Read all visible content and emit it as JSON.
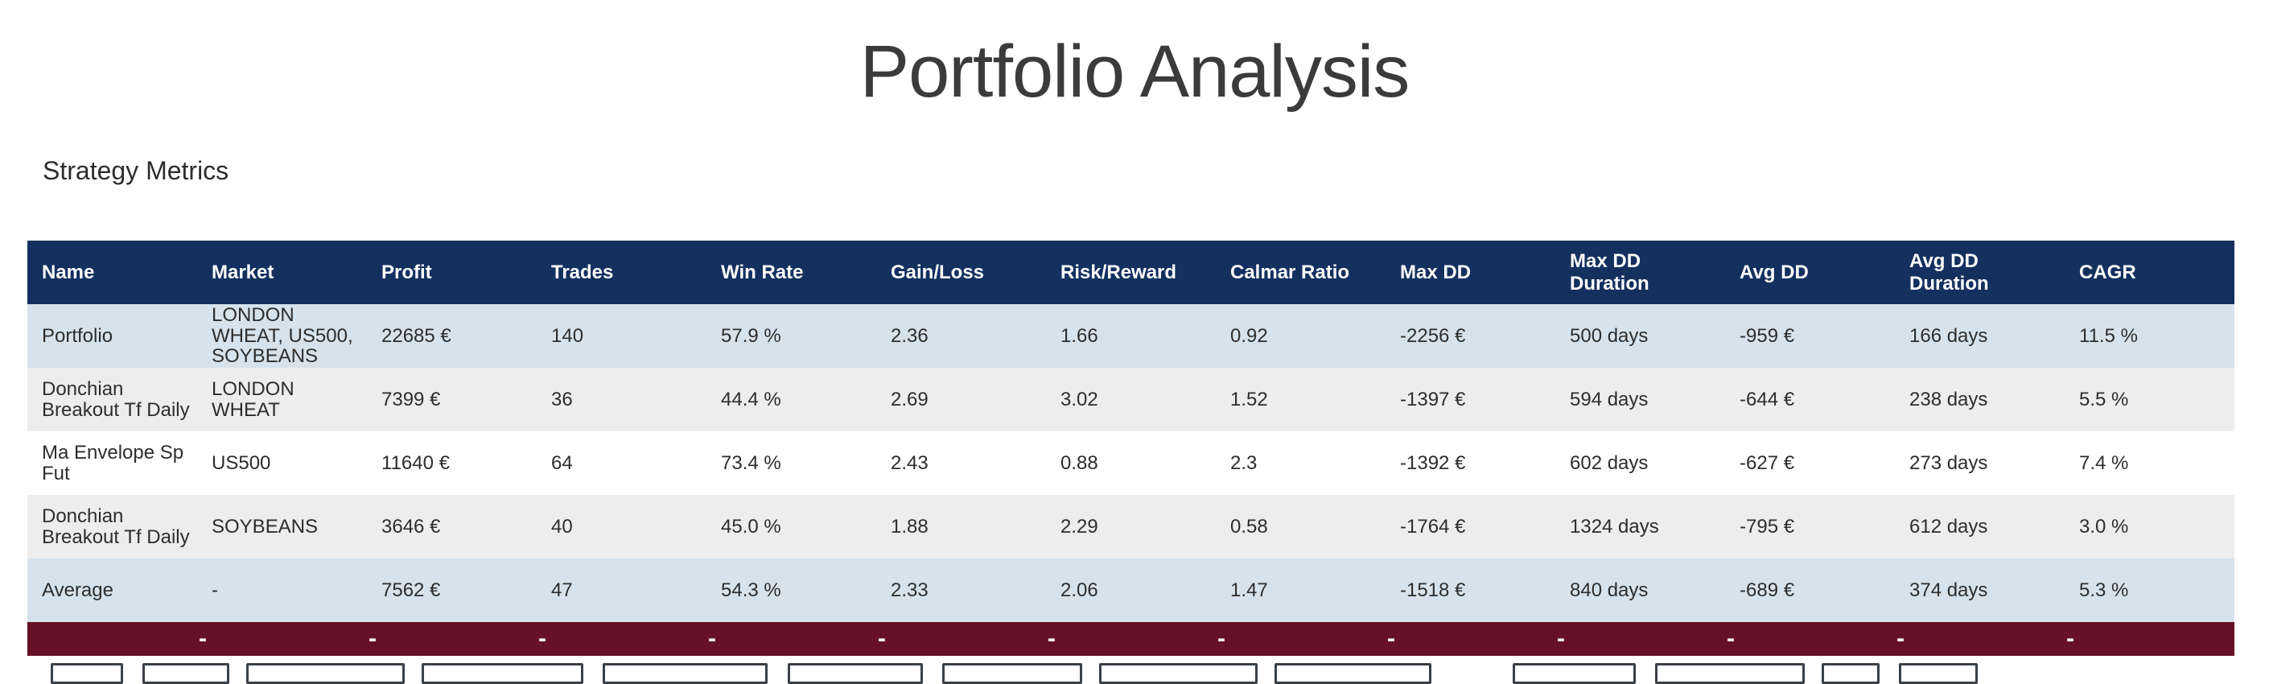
{
  "page": {
    "title": "Portfolio Analysis",
    "section_heading": "Strategy Metrics"
  },
  "table": {
    "columns": [
      "Name",
      "Market",
      "Profit",
      "Trades",
      "Win Rate",
      "Gain/Loss",
      "Risk/Reward",
      "Calmar Ratio",
      "Max DD",
      "Max DD Duration",
      "Avg DD",
      "Avg DD Duration",
      "CAGR"
    ],
    "rows": [
      {
        "variant": "highlight",
        "cells": [
          "Portfolio",
          "LONDON WHEAT, US500, SOYBEANS",
          "22685 €",
          "140",
          "57.9 %",
          "2.36",
          "1.66",
          "0.92",
          "-2256 €",
          "500 days",
          "-959 €",
          "166 days",
          "11.5 %"
        ]
      },
      {
        "variant": "stripe",
        "cells": [
          "Donchian Breakout Tf Daily",
          "LONDON WHEAT",
          "7399 €",
          "36",
          "44.4 %",
          "2.69",
          "3.02",
          "1.52",
          "-1397 €",
          "594 days",
          "-644 €",
          "238 days",
          "5.5 %"
        ]
      },
      {
        "variant": "plain",
        "cells": [
          "Ma Envelope Sp Fut",
          "US500",
          "11640 €",
          "64",
          "73.4 %",
          "2.43",
          "0.88",
          "2.3",
          "-1392 €",
          "602 days",
          "-627 €",
          "273 days",
          "7.4 %"
        ]
      },
      {
        "variant": "stripe",
        "cells": [
          "Donchian Breakout Tf Daily",
          "SOYBEANS",
          "3646 €",
          "40",
          "45.0 %",
          "1.88",
          "2.29",
          "0.58",
          "-1764 €",
          "1324 days",
          "-795 €",
          "612 days",
          "3.0 %"
        ]
      },
      {
        "variant": "highlight",
        "cells": [
          "Average",
          "-",
          "7562 €",
          "47",
          "54.3 %",
          "2.33",
          "2.06",
          "1.47",
          "-1518 €",
          "840 days",
          "-689 €",
          "374 days",
          "5.3 %"
        ]
      }
    ],
    "divider_row": {
      "dash": "-",
      "dash_count": 12
    }
  },
  "form_inputs": [
    "",
    "",
    "",
    "",
    "",
    "",
    "",
    "",
    "",
    "",
    "",
    "",
    ""
  ],
  "colors": {
    "header_bg": "#14305f",
    "header_text": "#ffffff",
    "highlight_row_bg": "#d7e3ec",
    "stripe_row_bg": "#ededee",
    "plain_row_bg": "#ffffff",
    "divider_bg": "#671127",
    "body_text": "#2d2d2d",
    "title_text": "#3b3b3b",
    "input_border": "#3a4047"
  }
}
